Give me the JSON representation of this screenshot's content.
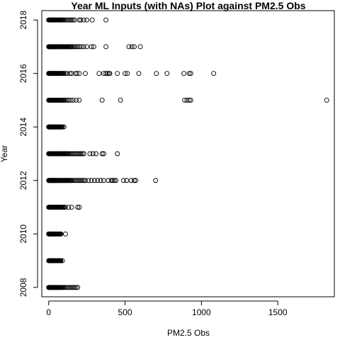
{
  "chart_data": {
    "type": "scatter",
    "title": "Year ML Inputs (with NAs) Plot against PM2.5 Obs",
    "xlabel": "PM2.5 Obs",
    "ylabel": "Year",
    "xlim": [
      -45,
      1870
    ],
    "ylim": [
      2007.65,
      2018.35
    ],
    "xticks": [
      0,
      500,
      1000,
      1500
    ],
    "yticks": [
      2008,
      2010,
      2012,
      2014,
      2016,
      2018
    ],
    "grid": false,
    "marker": "open-circle",
    "series": [
      {
        "rows": [
          {
            "year": 2018,
            "x": [
              0,
              3,
              6,
              9,
              12,
              15,
              18,
              21,
              24,
              27,
              30,
              33,
              36,
              39,
              42,
              45,
              48,
              52,
              56,
              60,
              64,
              68,
              72,
              76,
              80,
              85,
              90,
              95,
              100,
              110,
              120,
              130,
              140,
              150,
              160,
              170,
              200,
              210,
              230,
              250,
              285,
              375
            ]
          },
          {
            "year": 2017,
            "x": [
              0,
              3,
              6,
              9,
              12,
              15,
              18,
              21,
              24,
              27,
              30,
              33,
              36,
              39,
              42,
              45,
              48,
              52,
              56,
              60,
              64,
              68,
              72,
              76,
              80,
              85,
              90,
              95,
              100,
              105,
              110,
              115,
              120,
              125,
              130,
              135,
              140,
              145,
              150,
              160,
              170,
              180,
              190,
              200,
              215,
              230,
              250,
              280,
              295,
              375,
              525,
              545,
              560,
              600
            ]
          },
          {
            "year": 2016,
            "x": [
              0,
              3,
              6,
              9,
              12,
              15,
              18,
              21,
              24,
              27,
              30,
              33,
              36,
              39,
              42,
              45,
              48,
              52,
              56,
              60,
              64,
              68,
              72,
              76,
              80,
              85,
              90,
              95,
              100,
              110,
              120,
              140,
              150,
              175,
              185,
              200,
              240,
              330,
              360,
              375,
              385,
              395,
              400,
              450,
              500,
              515,
              590,
              705,
              775,
              885,
              920,
              930,
              1080
            ]
          },
          {
            "year": 2015,
            "x": [
              0,
              3,
              6,
              9,
              12,
              15,
              18,
              21,
              24,
              27,
              30,
              33,
              36,
              39,
              42,
              45,
              48,
              52,
              56,
              60,
              64,
              68,
              72,
              76,
              80,
              85,
              90,
              95,
              100,
              110,
              120,
              130,
              145,
              160,
              180,
              200,
              350,
              470,
              890,
              905,
              920,
              930,
              1820
            ]
          },
          {
            "year": 2014,
            "x": [
              0,
              3,
              6,
              9,
              12,
              15,
              18,
              21,
              24,
              27,
              30,
              33,
              36,
              39,
              42,
              45,
              48,
              52,
              56,
              60,
              64,
              68,
              72,
              76,
              80,
              85,
              90,
              100
            ]
          },
          {
            "year": 2013,
            "x": [
              0,
              3,
              6,
              9,
              12,
              15,
              18,
              21,
              24,
              27,
              30,
              33,
              36,
              39,
              42,
              45,
              48,
              52,
              56,
              60,
              64,
              68,
              72,
              76,
              80,
              85,
              90,
              95,
              100,
              105,
              110,
              115,
              120,
              125,
              130,
              140,
              150,
              160,
              170,
              180,
              190,
              200,
              210,
              220,
              230,
              270,
              290,
              310,
              350,
              360,
              450
            ]
          },
          {
            "year": 2012,
            "x": [
              0,
              3,
              6,
              9,
              12,
              15,
              18,
              21,
              24,
              27,
              30,
              33,
              36,
              39,
              42,
              45,
              48,
              52,
              56,
              60,
              64,
              68,
              72,
              76,
              80,
              85,
              90,
              95,
              100,
              105,
              110,
              115,
              120,
              125,
              130,
              135,
              140,
              145,
              150,
              160,
              170,
              180,
              190,
              200,
              210,
              220,
              230,
              240,
              260,
              280,
              300,
              320,
              340,
              360,
              390,
              410,
              420,
              430,
              440,
              490,
              510,
              540,
              560,
              570,
              700
            ]
          },
          {
            "year": 2011,
            "x": [
              0,
              3,
              6,
              9,
              12,
              15,
              18,
              21,
              24,
              27,
              30,
              33,
              36,
              39,
              42,
              45,
              48,
              52,
              56,
              60,
              64,
              68,
              72,
              76,
              80,
              85,
              90,
              95,
              100,
              110,
              130,
              150,
              190,
              200
            ]
          },
          {
            "year": 2010,
            "x": [
              0,
              3,
              6,
              9,
              12,
              15,
              18,
              21,
              24,
              27,
              30,
              33,
              36,
              39,
              42,
              45,
              48,
              52,
              56,
              60,
              64,
              68,
              72,
              76,
              80,
              110
            ]
          },
          {
            "year": 2009,
            "x": [
              0,
              3,
              6,
              9,
              12,
              15,
              18,
              21,
              24,
              27,
              30,
              33,
              36,
              39,
              42,
              45,
              48,
              52,
              56,
              60,
              64,
              68,
              72,
              76,
              80,
              90
            ]
          },
          {
            "year": 2008,
            "x": [
              0,
              3,
              6,
              9,
              12,
              15,
              18,
              21,
              24,
              27,
              30,
              33,
              36,
              39,
              42,
              45,
              48,
              52,
              56,
              60,
              64,
              68,
              72,
              76,
              80,
              85,
              90,
              95,
              100,
              110,
              120,
              130,
              140,
              150,
              160,
              170,
              180,
              190
            ]
          }
        ]
      }
    ]
  }
}
